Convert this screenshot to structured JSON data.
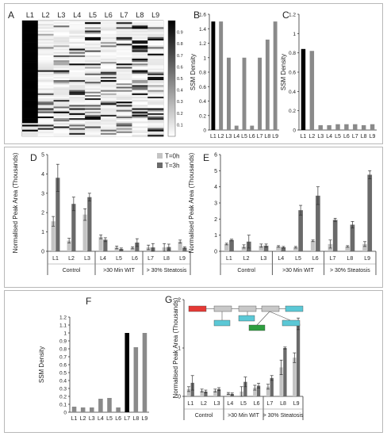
{
  "chart_data": [
    {
      "panel": "A",
      "type": "heatmap",
      "columns": [
        "L1",
        "L2",
        "L3",
        "L4",
        "L5",
        "L6",
        "L7",
        "L8",
        "L9"
      ],
      "colorbar_ticks": [
        "0.1",
        "0.2",
        "0.3",
        "0.4",
        "0.5",
        "0.6",
        "0.7",
        "0.8",
        "0.9"
      ],
      "colorscale": [
        "#ffffff",
        "#000000"
      ]
    },
    {
      "panel": "B",
      "type": "bar",
      "ylabel": "SSM Density",
      "categories": [
        "L1",
        "L2",
        "L3",
        "L4",
        "L5",
        "L6",
        "L7",
        "L8",
        "L9"
      ],
      "values": [
        1.5,
        1.5,
        1.0,
        0.06,
        1.0,
        0.06,
        1.0,
        1.25,
        1.5
      ],
      "highlight_index": 0,
      "ylim": [
        0,
        1.6
      ],
      "yticks": [
        "0",
        "0.2",
        "0.4",
        "0.6",
        "0.8",
        "1",
        "1.2",
        "1.4",
        "1.6"
      ]
    },
    {
      "panel": "C",
      "type": "bar",
      "ylabel": "SSM Density",
      "categories": [
        "L1",
        "L2",
        "L3",
        "L4",
        "L5",
        "L6",
        "L7",
        "L8",
        "L9"
      ],
      "values": [
        0.84,
        0.82,
        0.05,
        0.05,
        0.06,
        0.06,
        0.06,
        0.05,
        0.06
      ],
      "highlight_index": 0,
      "ylim": [
        0,
        1.2
      ],
      "yticks": [
        "0",
        "0.2",
        "0.4",
        "0.6",
        "0.8",
        "1",
        "1.2"
      ]
    },
    {
      "panel": "D",
      "type": "bar",
      "ylabel": "Normalised Peak Area  (Thousands)",
      "categories": [
        "L1",
        "L2",
        "L3",
        "L4",
        "L5",
        "L6",
        "L7",
        "L8",
        "L9"
      ],
      "groups": [
        "Control",
        ">30 Min WIT",
        "> 30% Steatosis"
      ],
      "legend": [
        "T=0h",
        "T=3h"
      ],
      "series": [
        {
          "name": "T=0h",
          "values": [
            1.55,
            0.55,
            1.9,
            0.75,
            0.2,
            0.18,
            0.2,
            0.2,
            0.5
          ],
          "errors": [
            0.25,
            0.12,
            0.3,
            0.1,
            0.07,
            0.05,
            0.12,
            0.2,
            0.08
          ]
        },
        {
          "name": "T=3h",
          "values": [
            3.8,
            2.45,
            2.8,
            0.6,
            0.12,
            0.45,
            0.2,
            0.22,
            0.18
          ],
          "errors": [
            0.7,
            0.35,
            0.2,
            0.1,
            0.05,
            0.2,
            0.2,
            0.15,
            0.05
          ]
        }
      ],
      "ylim": [
        0,
        5
      ],
      "yticks": [
        "0",
        "1",
        "2",
        "3",
        "4",
        "5"
      ]
    },
    {
      "panel": "E",
      "type": "bar",
      "ylabel": "Normalised Peak Area  (Thousands)",
      "categories": [
        "L1",
        "L2",
        "L3",
        "L4",
        "L5",
        "L6",
        "L7",
        "L8",
        "L9"
      ],
      "groups": [
        "Control",
        ">30 Min WIT",
        "> 30% Steatosis"
      ],
      "series": [
        {
          "name": "T=0h",
          "values": [
            0.45,
            0.3,
            0.35,
            0.3,
            0.25,
            0.65,
            0.45,
            0.3,
            0.45
          ],
          "errors": [
            0.05,
            0.1,
            0.1,
            0.05,
            0.05,
            0.05,
            0.25,
            0.05,
            0.15
          ]
        },
        {
          "name": "T=3h",
          "values": [
            0.7,
            0.6,
            0.35,
            0.25,
            2.55,
            3.45,
            1.95,
            1.65,
            4.75
          ],
          "errors": [
            0.05,
            0.4,
            0.1,
            0.05,
            0.3,
            0.55,
            0.1,
            0.2,
            0.25
          ]
        }
      ],
      "ylim": [
        0,
        6
      ],
      "yticks": [
        "0",
        "1",
        "2",
        "3",
        "4",
        "5",
        "6"
      ]
    },
    {
      "panel": "F",
      "type": "bar",
      "ylabel": "SSM Density",
      "categories": [
        "L1",
        "L2",
        "L3",
        "L4",
        "L5",
        "L6",
        "L7",
        "L8",
        "L9"
      ],
      "values": [
        0.07,
        0.06,
        0.06,
        0.17,
        0.18,
        0.06,
        1.0,
        0.82,
        1.0
      ],
      "highlight_index": 6,
      "ylim": [
        0,
        1.2
      ],
      "yticks": [
        "0",
        "0.1",
        "0.2",
        "0.3",
        "0.4",
        "0.5",
        "0.6",
        "0.7",
        "0.8",
        "0.9",
        "1",
        "1.1",
        "1.2"
      ]
    },
    {
      "panel": "G",
      "type": "bar",
      "ylabel": "Normalised Peak Area  (Thousands)",
      "categories": [
        "L1",
        "L2",
        "L3",
        "L4",
        "L5",
        "L6",
        "L7",
        "L8",
        "L9"
      ],
      "groups": [
        "Control",
        ">30 Min WIT",
        "> 30% Steatosis"
      ],
      "series": [
        {
          "name": "T=0h",
          "values": [
            0.15,
            0.12,
            0.12,
            0.06,
            0.1,
            0.18,
            0.2,
            0.6,
            0.8
          ],
          "errors": [
            0.05,
            0.03,
            0.03,
            0.02,
            0.1,
            0.05,
            0.05,
            0.15,
            0.1
          ]
        },
        {
          "name": "T=3h",
          "values": [
            0.28,
            0.1,
            0.15,
            0.05,
            0.3,
            0.22,
            0.38,
            1.0,
            1.5
          ],
          "errors": [
            0.15,
            0.03,
            0.03,
            0.02,
            0.1,
            0.05,
            0.05,
            0.02,
            0.12
          ]
        }
      ],
      "ylim": [
        0,
        2
      ],
      "yticks": [
        "0",
        "1",
        "2"
      ]
    }
  ],
  "colors": {
    "bar_gray": "#8a8a8a",
    "bar_black": "#000000",
    "t0": "#c4c4c4",
    "t3": "#6a6a6a",
    "text": "#222222"
  }
}
